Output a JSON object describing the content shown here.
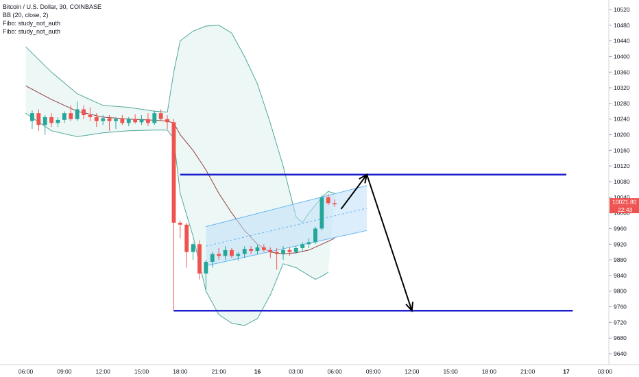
{
  "legend": {
    "symbol": "Bitcoin / U.S. Dollar, 30, COINBASE",
    "bb": "BB (20, close, 2)",
    "fibo1": "Fibo: study_not_auth",
    "fibo2": "Fibo: study_not_auth"
  },
  "price_badge": {
    "price": "10021.80",
    "countdown": "22:43",
    "color": "#ef5350"
  },
  "colors": {
    "up": "#26a69a",
    "down": "#ef5350",
    "bb_band": "#4fa69a",
    "bb_fill": "#e7f5f3",
    "basis": "#8d3e3e",
    "level_line": "#1b1ecf",
    "channel_fill": "#bfe0f7",
    "channel_line": "#64b5f6",
    "arrow": "#000000"
  },
  "chart_data": {
    "type": "candlestick",
    "x_ticks": [
      "06:00",
      "09:00",
      "12:00",
      "15:00",
      "18:00",
      "21:00",
      "16",
      "03:00",
      "06:00",
      "09:00",
      "12:00",
      "15:00",
      "18:00",
      "21:00",
      "17",
      "03:00"
    ],
    "bold_x_ticks": [
      "16",
      "17"
    ],
    "y_ticks": [
      10520,
      10480,
      10440,
      10400,
      10360,
      10320,
      10280,
      10240,
      10200,
      10160,
      10120,
      10080,
      10040,
      10000,
      9960,
      9920,
      9880,
      9840,
      9800,
      9760,
      9720,
      9680,
      9640
    ],
    "ylim": [
      9630,
      10540
    ],
    "candle_step_hours": 0.5,
    "candles": [
      {
        "t": 0.5,
        "o": 10235,
        "h": 10262,
        "l": 10215,
        "c": 10255
      },
      {
        "t": 1.0,
        "o": 10255,
        "h": 10265,
        "l": 10210,
        "c": 10225
      },
      {
        "t": 1.5,
        "o": 10225,
        "h": 10250,
        "l": 10200,
        "c": 10245
      },
      {
        "t": 2.0,
        "o": 10245,
        "h": 10255,
        "l": 10220,
        "c": 10230
      },
      {
        "t": 2.5,
        "o": 10230,
        "h": 10245,
        "l": 10220,
        "c": 10238
      },
      {
        "t": 3.0,
        "o": 10238,
        "h": 10260,
        "l": 10230,
        "c": 10255
      },
      {
        "t": 3.5,
        "o": 10255,
        "h": 10275,
        "l": 10235,
        "c": 10240
      },
      {
        "t": 4.0,
        "o": 10240,
        "h": 10285,
        "l": 10235,
        "c": 10265
      },
      {
        "t": 4.5,
        "o": 10265,
        "h": 10275,
        "l": 10240,
        "c": 10250
      },
      {
        "t": 5.0,
        "o": 10250,
        "h": 10270,
        "l": 10235,
        "c": 10245
      },
      {
        "t": 5.5,
        "o": 10245,
        "h": 10255,
        "l": 10220,
        "c": 10235
      },
      {
        "t": 6.0,
        "o": 10235,
        "h": 10250,
        "l": 10225,
        "c": 10242
      },
      {
        "t": 6.5,
        "o": 10242,
        "h": 10250,
        "l": 10210,
        "c": 10235
      },
      {
        "t": 7.0,
        "o": 10235,
        "h": 10245,
        "l": 10215,
        "c": 10240
      },
      {
        "t": 7.5,
        "o": 10240,
        "h": 10250,
        "l": 10225,
        "c": 10230
      },
      {
        "t": 8.0,
        "o": 10230,
        "h": 10245,
        "l": 10222,
        "c": 10240
      },
      {
        "t": 8.5,
        "o": 10240,
        "h": 10252,
        "l": 10228,
        "c": 10232
      },
      {
        "t": 9.0,
        "o": 10232,
        "h": 10250,
        "l": 10225,
        "c": 10240
      },
      {
        "t": 9.5,
        "o": 10240,
        "h": 10255,
        "l": 10222,
        "c": 10230
      },
      {
        "t": 10.0,
        "o": 10230,
        "h": 10262,
        "l": 10225,
        "c": 10255
      },
      {
        "t": 10.5,
        "o": 10255,
        "h": 10265,
        "l": 10235,
        "c": 10240
      },
      {
        "t": 11.0,
        "o": 10240,
        "h": 10250,
        "l": 10215,
        "c": 10232
      },
      {
        "t": 11.5,
        "o": 10232,
        "h": 10240,
        "l": 9750,
        "c": 9975
      },
      {
        "t": 12.0,
        "o": 9975,
        "h": 9980,
        "l": 9935,
        "c": 9970
      },
      {
        "t": 12.5,
        "o": 9970,
        "h": 9975,
        "l": 9860,
        "c": 9900
      },
      {
        "t": 13.0,
        "o": 9900,
        "h": 9925,
        "l": 9880,
        "c": 9920
      },
      {
        "t": 13.5,
        "o": 9920,
        "h": 9930,
        "l": 9830,
        "c": 9845
      },
      {
        "t": 14.0,
        "o": 9845,
        "h": 9880,
        "l": 9805,
        "c": 9875
      },
      {
        "t": 14.5,
        "o": 9875,
        "h": 9900,
        "l": 9860,
        "c": 9895
      },
      {
        "t": 15.0,
        "o": 9895,
        "h": 9910,
        "l": 9880,
        "c": 9890
      },
      {
        "t": 15.5,
        "o": 9890,
        "h": 9915,
        "l": 9880,
        "c": 9905
      },
      {
        "t": 16.0,
        "o": 9905,
        "h": 9910,
        "l": 9885,
        "c": 9890
      },
      {
        "t": 16.5,
        "o": 9890,
        "h": 9900,
        "l": 9878,
        "c": 9895
      },
      {
        "t": 17.0,
        "o": 9895,
        "h": 9915,
        "l": 9885,
        "c": 9908
      },
      {
        "t": 17.5,
        "o": 9908,
        "h": 9915,
        "l": 9895,
        "c": 9903
      },
      {
        "t": 18.0,
        "o": 9903,
        "h": 9918,
        "l": 9895,
        "c": 9912
      },
      {
        "t": 18.5,
        "o": 9912,
        "h": 9920,
        "l": 9900,
        "c": 9905
      },
      {
        "t": 19.0,
        "o": 9905,
        "h": 9912,
        "l": 9885,
        "c": 9900
      },
      {
        "t": 19.5,
        "o": 9900,
        "h": 9910,
        "l": 9855,
        "c": 9895
      },
      {
        "t": 20.0,
        "o": 9895,
        "h": 9915,
        "l": 9880,
        "c": 9905
      },
      {
        "t": 20.5,
        "o": 9905,
        "h": 9912,
        "l": 9890,
        "c": 9900
      },
      {
        "t": 21.0,
        "o": 9900,
        "h": 9915,
        "l": 9895,
        "c": 9910
      },
      {
        "t": 21.5,
        "o": 9910,
        "h": 9925,
        "l": 9900,
        "c": 9920
      },
      {
        "t": 22.0,
        "o": 9920,
        "h": 9935,
        "l": 9910,
        "c": 9925
      },
      {
        "t": 22.5,
        "o": 9925,
        "h": 9965,
        "l": 9920,
        "c": 9960
      },
      {
        "t": 23.0,
        "o": 9960,
        "h": 10045,
        "l": 9955,
        "c": 10040
      },
      {
        "t": 23.5,
        "o": 10040,
        "h": 10048,
        "l": 10020,
        "c": 10025
      },
      {
        "t": 24.0,
        "o": 10025,
        "h": 10035,
        "l": 10015,
        "c": 10022
      }
    ],
    "bb_upper": [
      [
        0,
        10425
      ],
      [
        2,
        10360
      ],
      [
        4,
        10305
      ],
      [
        6,
        10275
      ],
      [
        8,
        10270
      ],
      [
        10,
        10260
      ],
      [
        11,
        10258
      ],
      [
        11.5,
        10360
      ],
      [
        12,
        10440
      ],
      [
        13,
        10465
      ],
      [
        14,
        10478
      ],
      [
        15,
        10480
      ],
      [
        16,
        10460
      ],
      [
        17,
        10400
      ],
      [
        18,
        10330
      ],
      [
        19,
        10230
      ],
      [
        20,
        10120
      ],
      [
        21,
        9990
      ],
      [
        21.5,
        9975
      ],
      [
        22,
        10000
      ],
      [
        23,
        10040
      ],
      [
        23.5,
        10055
      ],
      [
        24,
        10050
      ]
    ],
    "bb_lower": [
      [
        0,
        10255
      ],
      [
        2,
        10210
      ],
      [
        4,
        10195
      ],
      [
        6,
        10205
      ],
      [
        8,
        10210
      ],
      [
        10,
        10212
      ],
      [
        11,
        10212
      ],
      [
        11.5,
        10190
      ],
      [
        12,
        10050
      ],
      [
        13,
        9940
      ],
      [
        14,
        9800
      ],
      [
        15,
        9740
      ],
      [
        16,
        9718
      ],
      [
        17,
        9712
      ],
      [
        18,
        9730
      ],
      [
        19,
        9790
      ],
      [
        20,
        9870
      ],
      [
        21,
        9860
      ],
      [
        22,
        9840
      ],
      [
        22.5,
        9830
      ],
      [
        23,
        9838
      ],
      [
        23.5,
        9848
      ]
    ],
    "bb_basis": [
      [
        0,
        10325
      ],
      [
        2,
        10290
      ],
      [
        4,
        10260
      ],
      [
        6,
        10245
      ],
      [
        8,
        10240
      ],
      [
        10,
        10237
      ],
      [
        11,
        10235
      ],
      [
        11.5,
        10230
      ],
      [
        12,
        10200
      ],
      [
        13,
        10160
      ],
      [
        14,
        10110
      ],
      [
        15,
        10050
      ],
      [
        16,
        10000
      ],
      [
        17,
        9955
      ],
      [
        18,
        9920
      ],
      [
        19,
        9900
      ],
      [
        20,
        9895
      ],
      [
        21,
        9898
      ],
      [
        22,
        9905
      ],
      [
        23,
        9920
      ],
      [
        24,
        9935
      ]
    ],
    "drawings": {
      "upper_level": {
        "price": 10098,
        "from": 12.0,
        "to": 42.0
      },
      "lower_level": {
        "price": 9750,
        "from": 11.5,
        "to": 42.5
      },
      "channel": {
        "from": 14.0,
        "to": 26.5,
        "upper_start": 9965,
        "upper_end": 10070,
        "mid_start": 9915,
        "mid_end": 10012,
        "lower_start": 9865,
        "lower_end": 9955
      },
      "arrow_up": {
        "from": [
          24.5,
          10010
        ],
        "to": [
          26.5,
          10098
        ]
      },
      "arrow_down": {
        "from": [
          26.5,
          10098
        ],
        "to": [
          30.0,
          9750
        ]
      }
    }
  }
}
